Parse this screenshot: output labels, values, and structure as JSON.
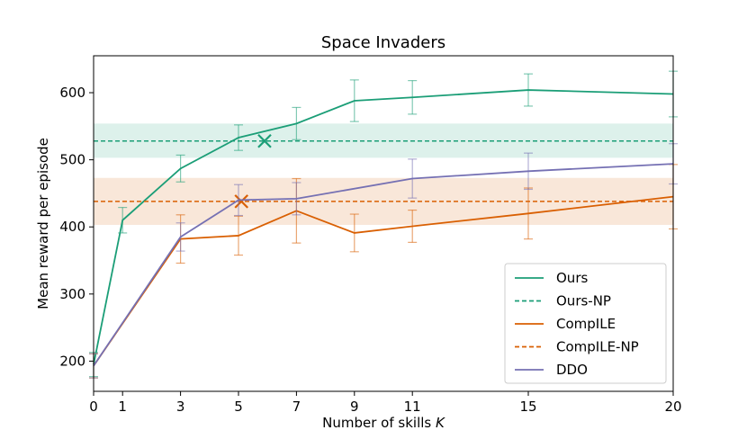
{
  "chart_data": {
    "type": "line",
    "title": "Space Invaders",
    "xlabel_text": "Number of skills ",
    "xlabel_var": "K",
    "ylabel": "Mean reward per episode",
    "xlim": [
      0,
      20
    ],
    "ylim": [
      155,
      655
    ],
    "xticks": [
      0,
      1,
      3,
      5,
      7,
      9,
      11,
      15,
      20
    ],
    "yticks": [
      200,
      300,
      400,
      500,
      600
    ],
    "legend_position": "lower-right",
    "series": [
      {
        "name": "Ours",
        "style": "solid",
        "color": "#1b9e77",
        "x": [
          0,
          1,
          3,
          5,
          7,
          9,
          11,
          15,
          20
        ],
        "y": [
          195,
          410,
          487,
          533,
          554,
          588,
          593,
          604,
          598
        ],
        "err": [
          18,
          19,
          20,
          19,
          24,
          31,
          25,
          24,
          34
        ]
      },
      {
        "name": "Ours-NP",
        "style": "dashed",
        "color": "#1b9e77",
        "value": 528,
        "band": [
          503,
          554
        ],
        "marker": {
          "x": 5.9,
          "y": 528
        }
      },
      {
        "name": "CompILE",
        "style": "solid",
        "color": "#d95f02",
        "x": [
          0,
          3,
          5,
          7,
          9,
          11,
          15,
          20
        ],
        "y": [
          193,
          382,
          387,
          424,
          391,
          401,
          420,
          445
        ],
        "err": [
          18,
          36,
          29,
          48,
          28,
          24,
          38,
          48
        ]
      },
      {
        "name": "CompILE-NP",
        "style": "dashed",
        "color": "#d95f02",
        "value": 438,
        "band": [
          403,
          473
        ],
        "marker": {
          "x": 5.1,
          "y": 438
        }
      },
      {
        "name": "DDO",
        "style": "solid",
        "color": "#7570b3",
        "x": [
          0,
          3,
          5,
          7,
          11,
          15,
          20
        ],
        "y": [
          193,
          385,
          440,
          442,
          472,
          483,
          494
        ],
        "err": [
          18,
          21,
          23,
          24,
          29,
          27,
          30
        ]
      }
    ]
  }
}
